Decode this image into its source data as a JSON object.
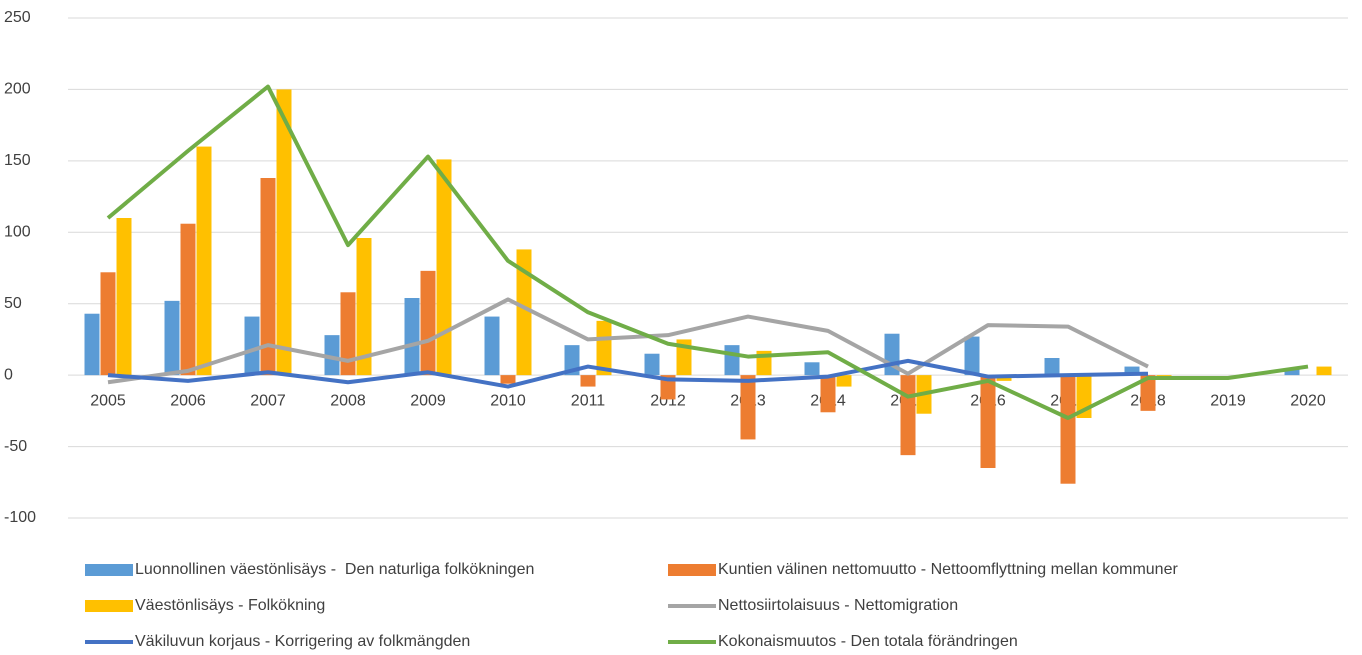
{
  "chart_data": {
    "type": "combo",
    "categories": [
      "2005",
      "2006",
      "2007",
      "2008",
      "2009",
      "2010",
      "2011",
      "2012",
      "2013",
      "2014",
      "2015",
      "2016",
      "2017",
      "2018",
      "2019",
      "2020"
    ],
    "ylim": [
      -100,
      250
    ],
    "yticks": [
      -100,
      -50,
      0,
      50,
      100,
      150,
      200,
      250
    ],
    "grid": true,
    "legend": "bottom",
    "series": [
      {
        "name": "Luonnollinen väestönlisäys -  Den naturliga folkökningen",
        "type": "bar",
        "color": "#5b9bd5",
        "values": [
          43,
          52,
          41,
          28,
          54,
          41,
          21,
          15,
          21,
          9,
          29,
          27,
          12,
          6,
          null,
          5
        ]
      },
      {
        "name": "Kuntien välinen nettomuutto - Nettoomflyttning mellan kommuner",
        "type": "bar",
        "color": "#ed7d31",
        "values": [
          72,
          106,
          138,
          58,
          73,
          -6,
          -8,
          -17,
          -45,
          -26,
          -56,
          -65,
          -76,
          -25,
          null,
          null
        ]
      },
      {
        "name": "Väestönlisäys - Folkökning",
        "type": "bar",
        "color": "#ffc000",
        "values": [
          110,
          160,
          200,
          96,
          151,
          88,
          38,
          25,
          17,
          -8,
          -27,
          -4,
          -30,
          -2,
          null,
          6
        ]
      },
      {
        "name": "Nettosiirtolaisuus - Nettomigration",
        "type": "line",
        "color": "#a5a5a5",
        "values": [
          -5,
          3,
          21,
          10,
          24,
          53,
          25,
          28,
          41,
          31,
          1,
          35,
          34,
          6,
          null,
          null
        ]
      },
      {
        "name": "Väkiluvun korjaus - Korrigering av folkmängden",
        "type": "line",
        "color": "#4472c4",
        "values": [
          0,
          -4,
          2,
          -5,
          2,
          -8,
          6,
          -3,
          -4,
          -1,
          10,
          -1,
          0,
          1,
          null,
          null
        ]
      },
      {
        "name": "Kokonaismuutos - Den totala förändringen",
        "type": "line",
        "color": "#70ad47",
        "values": [
          110,
          157,
          202,
          91,
          153,
          80,
          44,
          22,
          13,
          16,
          -15,
          -4,
          -30,
          -2,
          -2,
          6
        ]
      }
    ]
  }
}
